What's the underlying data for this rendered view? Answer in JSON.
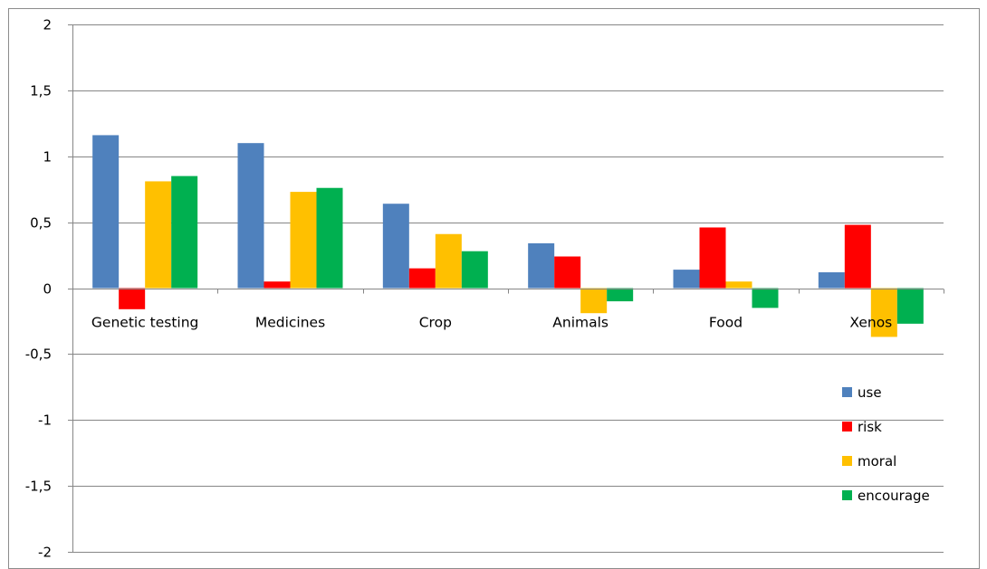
{
  "chart_data": {
    "type": "bar",
    "categories": [
      "Genetic testing",
      "Medicines",
      "Crop",
      "Animals",
      "Food",
      "Xenos"
    ],
    "series": [
      {
        "name": "use",
        "color": "#4f81bd",
        "values": [
          1.16,
          1.1,
          0.64,
          0.34,
          0.14,
          0.12
        ]
      },
      {
        "name": "risk",
        "color": "#ff0000",
        "values": [
          -0.16,
          0.05,
          0.15,
          0.24,
          0.46,
          0.48
        ]
      },
      {
        "name": "moral",
        "color": "#ffc000",
        "values": [
          0.81,
          0.73,
          0.41,
          -0.19,
          0.05,
          -0.37
        ]
      },
      {
        "name": "encourage",
        "color": "#00b050",
        "values": [
          0.85,
          0.76,
          0.28,
          -0.1,
          -0.15,
          -0.27
        ]
      }
    ],
    "ylim": [
      -2,
      2
    ],
    "yticks": [
      2,
      1.5,
      1,
      0.5,
      0,
      -0.5,
      -1,
      -1.5,
      -2
    ],
    "ytick_labels": [
      "2",
      "1,5",
      "1",
      "0,5",
      "0",
      "-0,5",
      "-1",
      "-1,5",
      "-2"
    ],
    "grid": true,
    "legend_position": "right",
    "title": "",
    "xlabel": "",
    "ylabel": ""
  }
}
